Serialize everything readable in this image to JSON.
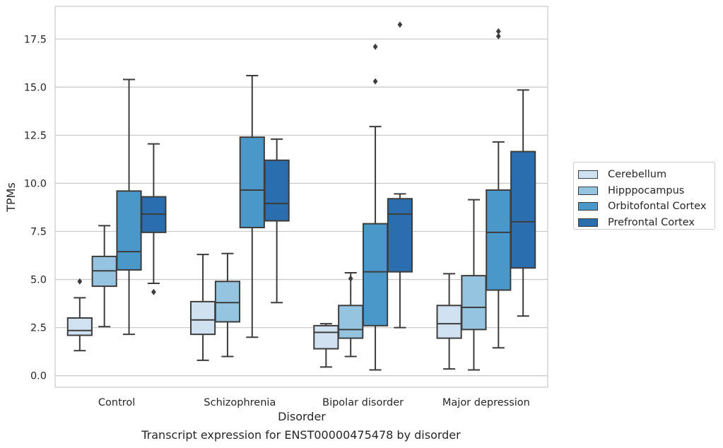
{
  "chart_data": {
    "type": "box",
    "xlabel": "Disorder",
    "ylabel": "TPMs",
    "caption": "Transcript expression for ENST00000475478 by disorder",
    "categories": [
      "Control",
      "Schizophrenia",
      "Bipolar disorder",
      "Major depression"
    ],
    "ylim": [
      -0.6,
      19.2
    ],
    "yticks": [
      0.0,
      2.5,
      5.0,
      7.5,
      10.0,
      12.5,
      15.0,
      17.5
    ],
    "ytick_labels": [
      "0.0",
      "2.5",
      "5.0",
      "7.5",
      "10.0",
      "12.5",
      "15.0",
      "17.5"
    ],
    "grid": "horizontal",
    "legend_position": "right",
    "series": [
      {
        "name": "Cerebellum",
        "color": "#d0e1f2",
        "boxes": [
          {
            "whislo": 1.3,
            "q1": 2.1,
            "med": 2.35,
            "q3": 3.0,
            "whishi": 4.05,
            "fliers": [
              4.9
            ]
          },
          {
            "whislo": 0.8,
            "q1": 2.15,
            "med": 2.9,
            "q3": 3.85,
            "whishi": 6.3,
            "fliers": []
          },
          {
            "whislo": 0.45,
            "q1": 1.4,
            "med": 2.25,
            "q3": 2.6,
            "whishi": 2.7,
            "fliers": []
          },
          {
            "whislo": 0.35,
            "q1": 1.95,
            "med": 2.7,
            "q3": 3.65,
            "whishi": 5.3,
            "fliers": []
          }
        ]
      },
      {
        "name": "Hipppocampus",
        "color": "#94c4df",
        "boxes": [
          {
            "whislo": 2.55,
            "q1": 4.65,
            "med": 5.45,
            "q3": 6.2,
            "whishi": 7.8,
            "fliers": []
          },
          {
            "whislo": 1.0,
            "q1": 2.8,
            "med": 3.8,
            "q3": 4.9,
            "whishi": 6.35,
            "fliers": []
          },
          {
            "whislo": 1.0,
            "q1": 1.95,
            "med": 2.4,
            "q3": 3.65,
            "whishi": 5.35,
            "fliers": [
              5.05
            ]
          },
          {
            "whislo": 0.3,
            "q1": 2.4,
            "med": 3.55,
            "q3": 5.2,
            "whishi": 9.15,
            "fliers": []
          }
        ]
      },
      {
        "name": "Orbitofontal Cortex",
        "color": "#4a98c9",
        "boxes": [
          {
            "whislo": 2.15,
            "q1": 5.5,
            "med": 6.45,
            "q3": 9.6,
            "whishi": 15.4,
            "fliers": []
          },
          {
            "whislo": 2.0,
            "q1": 7.7,
            "med": 9.65,
            "q3": 12.4,
            "whishi": 15.6,
            "fliers": []
          },
          {
            "whislo": 0.3,
            "q1": 2.6,
            "med": 5.4,
            "q3": 7.9,
            "whishi": 12.95,
            "fliers": [
              17.1,
              15.3
            ]
          },
          {
            "whislo": 1.45,
            "q1": 4.45,
            "med": 7.45,
            "q3": 9.65,
            "whishi": 12.15,
            "fliers": [
              17.9,
              17.65
            ]
          }
        ]
      },
      {
        "name": "Prefrontal Cortex",
        "color": "#2a6eb0",
        "boxes": [
          {
            "whislo": 4.8,
            "q1": 7.45,
            "med": 8.4,
            "q3": 9.3,
            "whishi": 12.05,
            "fliers": [
              4.35
            ]
          },
          {
            "whislo": 3.8,
            "q1": 8.05,
            "med": 8.95,
            "q3": 11.2,
            "whishi": 12.3,
            "fliers": []
          },
          {
            "whislo": 2.5,
            "q1": 5.4,
            "med": 8.4,
            "q3": 9.2,
            "whishi": 9.45,
            "fliers": [
              18.25
            ]
          },
          {
            "whislo": 3.1,
            "q1": 5.6,
            "med": 8.0,
            "q3": 11.65,
            "whishi": 14.85,
            "fliers": []
          }
        ]
      }
    ]
  }
}
